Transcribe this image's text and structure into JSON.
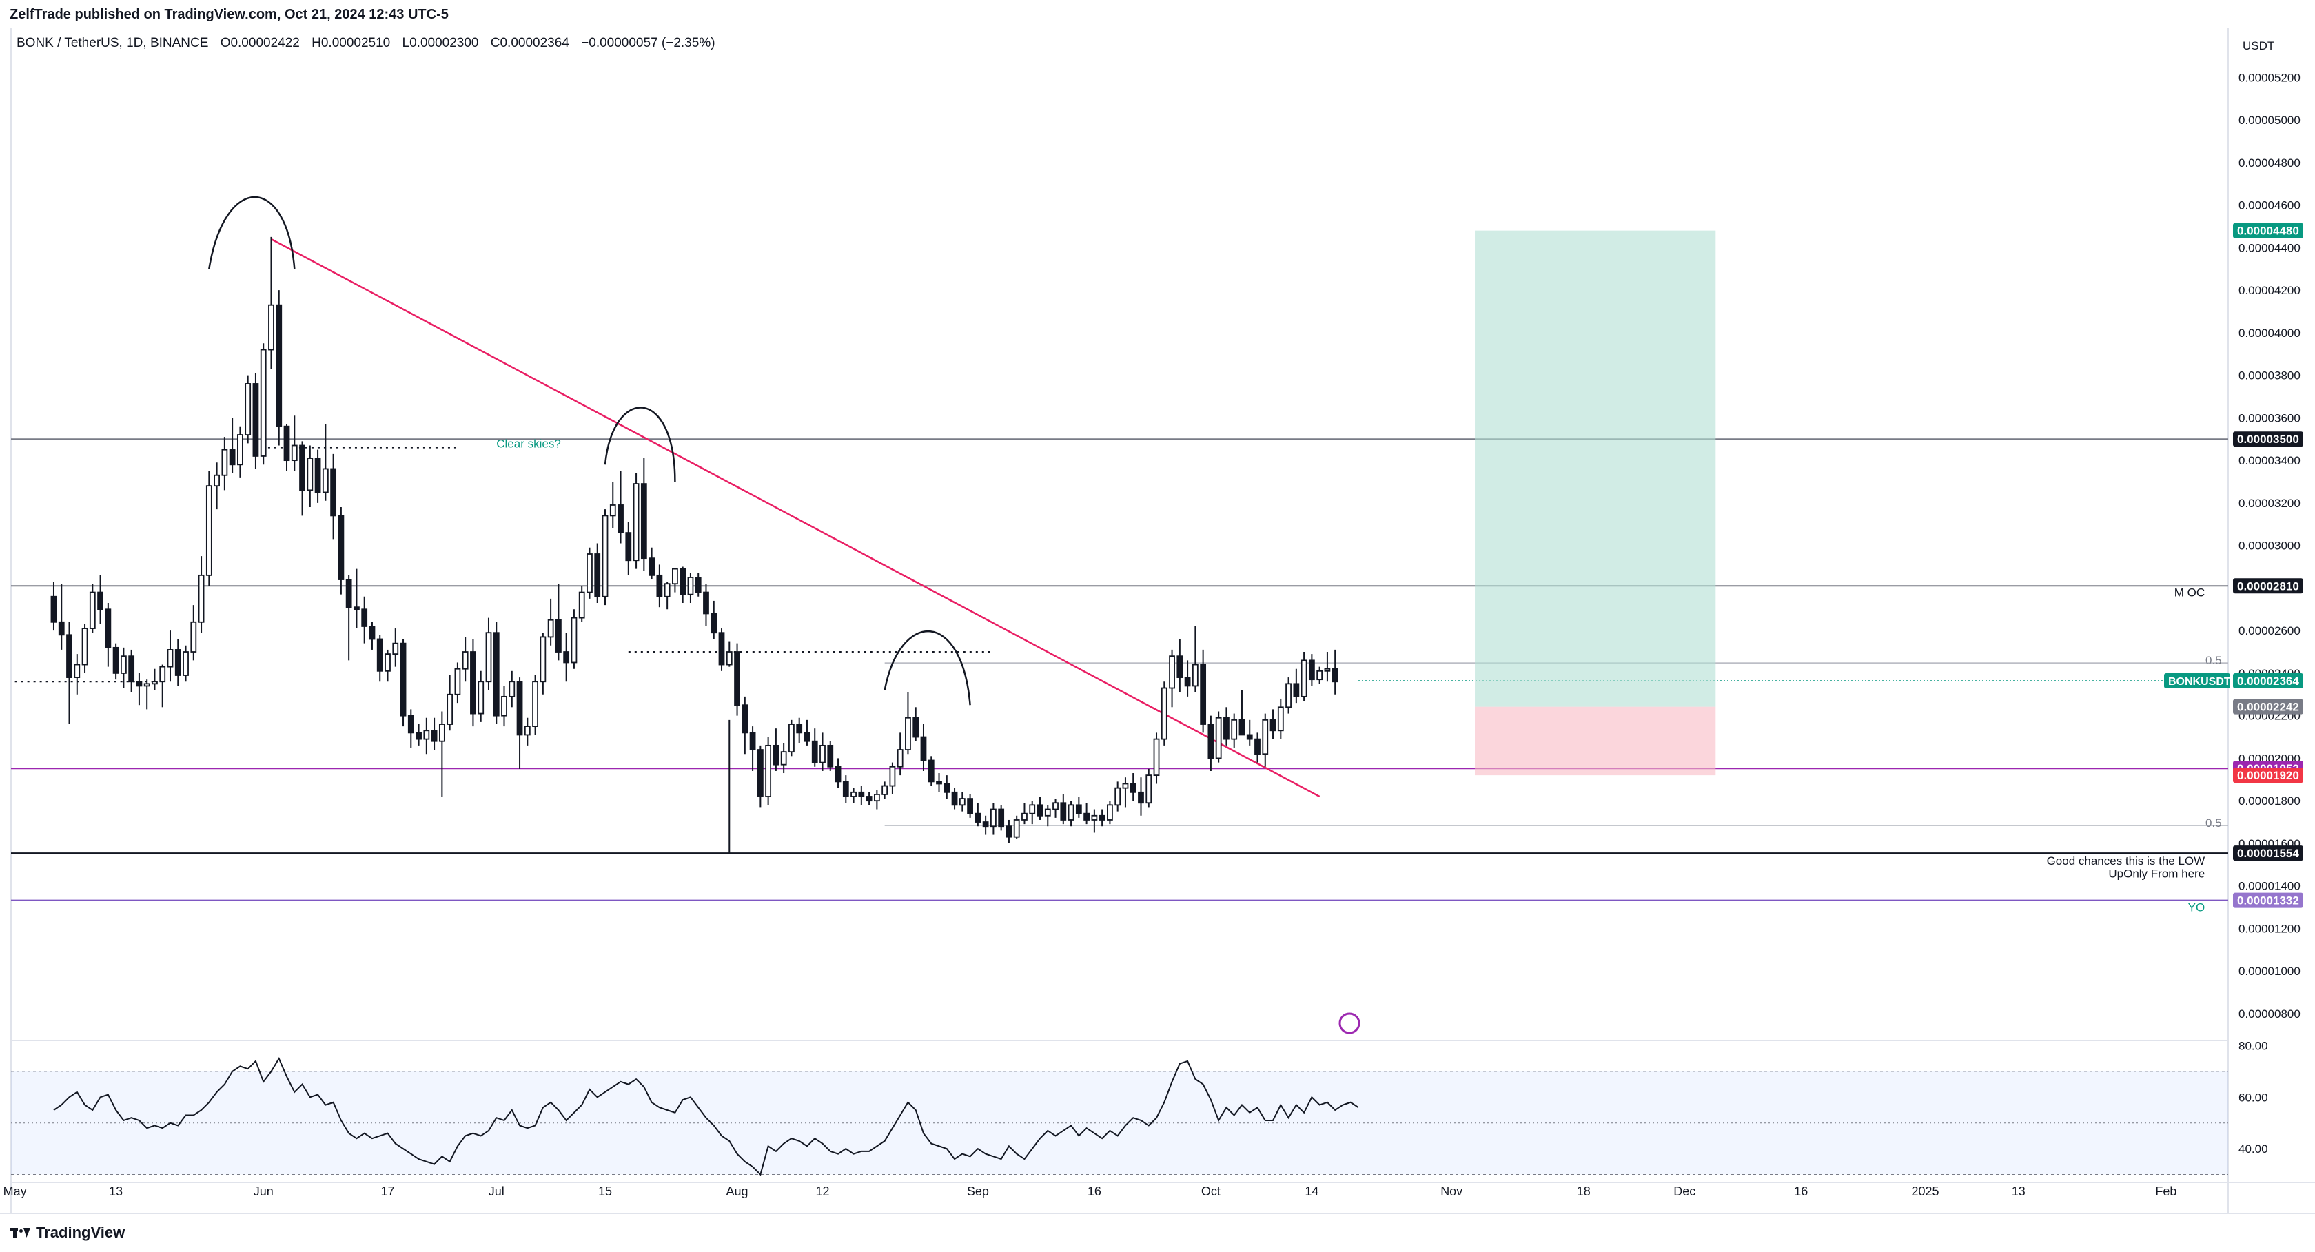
{
  "header": {
    "publisher": "ZelfTrade published on TradingView.com, Oct 21, 2024 12:43 UTC-5",
    "symbol": "BONK / TetherUS, 1D, BINANCE",
    "open": "O0.00002422",
    "high": "H0.00002510",
    "low": "L0.00002300",
    "close": "C0.00002364",
    "change": "−0.00000057 (−2.35%)"
  },
  "footer": {
    "brand": "TradingView"
  },
  "chart_data": {
    "type": "candlestick",
    "currency": "USDT",
    "y_axis_ticks": [
      "0.00000800",
      "0.00001000",
      "0.00001200",
      "0.00001400",
      "0.00001600",
      "0.00001800",
      "0.00002000",
      "0.00002200",
      "0.00002400",
      "0.00002600",
      "0.00002800",
      "0.00003000",
      "0.00003200",
      "0.00003400",
      "0.00003600",
      "0.00003800",
      "0.00004000",
      "0.00004200",
      "0.00004400",
      "0.00004600",
      "0.00004800",
      "0.00005000",
      "0.00005200"
    ],
    "y_axis_values": [
      8,
      10,
      12,
      14,
      16,
      18,
      20,
      22,
      24,
      26,
      28,
      30,
      32,
      34,
      36,
      38,
      40,
      42,
      44,
      46,
      48,
      50,
      52
    ],
    "ylim": [
      6.8,
      53.5
    ],
    "y_unit_note": "prices ×1e-6",
    "x_axis_labels": [
      {
        "label": "May",
        "t": -5
      },
      {
        "label": "13",
        "t": 8
      },
      {
        "label": "Jun",
        "t": 27
      },
      {
        "label": "17",
        "t": 43
      },
      {
        "label": "Jul",
        "t": 57
      },
      {
        "label": "15",
        "t": 71
      },
      {
        "label": "Aug",
        "t": 88
      },
      {
        "label": "12",
        "t": 99
      },
      {
        "label": "Sep",
        "t": 119
      },
      {
        "label": "16",
        "t": 134
      },
      {
        "label": "Oct",
        "t": 149
      },
      {
        "label": "14",
        "t": 162
      },
      {
        "label": "Nov",
        "t": 180
      },
      {
        "label": "18",
        "t": 197
      },
      {
        "label": "Dec",
        "t": 210
      },
      {
        "label": "16",
        "t": 225
      },
      {
        "label": "2025",
        "t": 241
      },
      {
        "label": "13",
        "t": 253
      },
      {
        "label": "Feb",
        "t": 272
      }
    ],
    "xlim": [
      -5.5,
      280
    ],
    "candles": [
      [
        27.6,
        28.3,
        26.0,
        26.4
      ],
      [
        26.4,
        28.2,
        25.1,
        25.8
      ],
      [
        25.8,
        26.4,
        21.6,
        23.8
      ],
      [
        23.8,
        24.9,
        23.0,
        24.4
      ],
      [
        24.4,
        26.3,
        24.0,
        26.1
      ],
      [
        26.1,
        28.2,
        25.9,
        27.8
      ],
      [
        27.8,
        28.6,
        26.3,
        27.0
      ],
      [
        27.0,
        27.3,
        24.3,
        25.2
      ],
      [
        25.2,
        25.4,
        23.7,
        24.0
      ],
      [
        24.0,
        25.2,
        23.3,
        24.8
      ],
      [
        24.8,
        25.1,
        23.1,
        23.6
      ],
      [
        23.6,
        24.0,
        22.5,
        23.4
      ],
      [
        23.4,
        23.7,
        22.3,
        23.5
      ],
      [
        23.5,
        24.2,
        23.2,
        23.6
      ],
      [
        23.6,
        24.4,
        22.4,
        24.3
      ],
      [
        24.3,
        26.0,
        23.6,
        25.1
      ],
      [
        25.1,
        25.6,
        23.4,
        23.9
      ],
      [
        23.9,
        25.3,
        23.6,
        25.0
      ],
      [
        25.0,
        27.2,
        24.6,
        26.4
      ],
      [
        26.4,
        29.5,
        25.9,
        28.6
      ],
      [
        28.6,
        33.5,
        28.1,
        32.8
      ],
      [
        32.8,
        33.9,
        31.7,
        33.3
      ],
      [
        33.3,
        35.1,
        32.6,
        34.5
      ],
      [
        34.5,
        36.0,
        33.4,
        33.8
      ],
      [
        33.8,
        35.6,
        33.2,
        35.2
      ],
      [
        35.2,
        38.0,
        34.8,
        37.6
      ],
      [
        37.6,
        38.1,
        33.6,
        34.2
      ],
      [
        34.2,
        39.5,
        33.8,
        39.2
      ],
      [
        39.2,
        44.5,
        38.3,
        41.3
      ],
      [
        41.3,
        42.0,
        34.7,
        35.6
      ],
      [
        35.6,
        35.7,
        33.5,
        34.0
      ],
      [
        34.0,
        36.1,
        33.5,
        34.7
      ],
      [
        34.7,
        34.9,
        31.4,
        32.6
      ],
      [
        32.6,
        34.7,
        31.8,
        34.1
      ],
      [
        34.1,
        34.5,
        32.0,
        32.5
      ],
      [
        32.5,
        35.7,
        32.1,
        33.6
      ],
      [
        33.6,
        34.3,
        30.3,
        31.4
      ],
      [
        31.4,
        31.8,
        27.7,
        28.4
      ],
      [
        28.4,
        28.6,
        24.6,
        27.1
      ],
      [
        27.1,
        28.9,
        26.1,
        27.0
      ],
      [
        27.0,
        27.6,
        25.4,
        26.2
      ],
      [
        26.2,
        26.4,
        25.1,
        25.6
      ],
      [
        25.6,
        25.8,
        23.6,
        24.1
      ],
      [
        24.1,
        25.1,
        23.6,
        24.9
      ],
      [
        24.9,
        26.1,
        24.3,
        25.4
      ],
      [
        25.4,
        25.6,
        21.5,
        22.0
      ],
      [
        22.0,
        22.3,
        20.5,
        21.2
      ],
      [
        21.2,
        21.6,
        20.6,
        20.9
      ],
      [
        20.9,
        21.9,
        20.2,
        21.3
      ],
      [
        21.3,
        21.9,
        20.4,
        20.8
      ],
      [
        20.8,
        22.2,
        18.2,
        21.6
      ],
      [
        21.6,
        23.9,
        21.3,
        23.0
      ],
      [
        23.0,
        24.5,
        22.6,
        24.2
      ],
      [
        24.2,
        25.7,
        23.6,
        25.0
      ],
      [
        25.0,
        25.6,
        21.5,
        22.1
      ],
      [
        22.1,
        24.1,
        21.7,
        23.6
      ],
      [
        23.6,
        26.6,
        23.2,
        25.9
      ],
      [
        25.9,
        26.4,
        21.6,
        22.0
      ],
      [
        22.0,
        23.4,
        21.5,
        22.9
      ],
      [
        22.9,
        24.1,
        22.4,
        23.6
      ],
      [
        23.6,
        23.8,
        19.5,
        21.1
      ],
      [
        21.1,
        21.9,
        20.6,
        21.5
      ],
      [
        21.5,
        23.9,
        21.1,
        23.6
      ],
      [
        23.6,
        25.9,
        23.0,
        25.7
      ],
      [
        25.7,
        27.5,
        25.3,
        26.5
      ],
      [
        26.5,
        28.2,
        24.6,
        25.0
      ],
      [
        25.0,
        25.9,
        23.6,
        24.5
      ],
      [
        24.5,
        27.0,
        24.2,
        26.6
      ],
      [
        26.6,
        28.1,
        26.4,
        27.8
      ],
      [
        27.8,
        29.9,
        27.5,
        29.6
      ],
      [
        29.6,
        30.1,
        27.3,
        27.6
      ],
      [
        27.6,
        31.7,
        27.2,
        31.4
      ],
      [
        31.4,
        33.0,
        30.8,
        31.9
      ],
      [
        31.9,
        33.5,
        30.1,
        30.6
      ],
      [
        30.6,
        31.1,
        28.6,
        29.3
      ],
      [
        29.3,
        33.4,
        28.9,
        32.9
      ],
      [
        32.9,
        34.1,
        28.8,
        29.4
      ],
      [
        29.4,
        29.9,
        28.4,
        28.6
      ],
      [
        28.6,
        29.1,
        27.1,
        27.6
      ],
      [
        27.6,
        28.3,
        27.0,
        28.2
      ],
      [
        28.2,
        28.9,
        27.8,
        28.9
      ],
      [
        28.9,
        29.0,
        27.3,
        27.7
      ],
      [
        27.7,
        28.7,
        27.3,
        28.5
      ],
      [
        28.5,
        28.7,
        27.6,
        27.8
      ],
      [
        27.8,
        28.2,
        26.2,
        26.8
      ],
      [
        26.8,
        27.4,
        25.6,
        25.9
      ],
      [
        25.9,
        26.1,
        24.1,
        24.4
      ],
      [
        24.4,
        25.5,
        24.3,
        25.0
      ],
      [
        25.0,
        25.4,
        22.0,
        22.5
      ],
      [
        22.5,
        22.9,
        20.2,
        21.2
      ],
      [
        21.2,
        21.5,
        19.4,
        20.4
      ],
      [
        20.4,
        20.6,
        17.7,
        18.2
      ],
      [
        18.2,
        21.0,
        17.8,
        20.6
      ],
      [
        20.6,
        21.4,
        19.4,
        19.7
      ],
      [
        19.7,
        20.7,
        19.3,
        20.3
      ],
      [
        20.3,
        21.8,
        20.1,
        21.6
      ],
      [
        21.6,
        21.9,
        20.7,
        21.2
      ],
      [
        21.2,
        21.8,
        20.6,
        20.8
      ],
      [
        20.8,
        21.4,
        19.6,
        19.8
      ],
      [
        19.8,
        21.2,
        19.4,
        20.6
      ],
      [
        20.6,
        20.8,
        19.4,
        19.6
      ],
      [
        19.6,
        20.0,
        18.6,
        18.9
      ],
      [
        18.9,
        19.2,
        17.9,
        18.2
      ],
      [
        18.2,
        18.6,
        17.9,
        18.4
      ],
      [
        18.4,
        18.7,
        17.8,
        18.2
      ],
      [
        18.2,
        18.4,
        17.8,
        18.0
      ],
      [
        18.0,
        18.5,
        17.6,
        18.3
      ],
      [
        18.3,
        18.9,
        18.1,
        18.7
      ],
      [
        18.7,
        19.8,
        18.3,
        19.6
      ],
      [
        19.6,
        21.2,
        19.2,
        20.4
      ],
      [
        20.4,
        23.1,
        20.2,
        21.9
      ],
      [
        21.9,
        22.4,
        20.8,
        21.0
      ],
      [
        21.0,
        21.6,
        19.4,
        19.9
      ],
      [
        19.9,
        20.1,
        18.7,
        18.9
      ],
      [
        18.9,
        19.3,
        18.4,
        18.8
      ],
      [
        18.8,
        19.2,
        18.1,
        18.4
      ],
      [
        18.4,
        18.6,
        17.6,
        17.8
      ],
      [
        17.8,
        18.4,
        17.5,
        18.1
      ],
      [
        18.1,
        18.3,
        17.2,
        17.4
      ],
      [
        17.4,
        17.9,
        16.8,
        17.0
      ],
      [
        17.0,
        17.3,
        16.4,
        16.8
      ],
      [
        16.8,
        17.9,
        16.4,
        17.6
      ],
      [
        17.6,
        17.8,
        16.6,
        16.8
      ],
      [
        16.8,
        17.1,
        16.0,
        16.3
      ],
      [
        16.3,
        17.3,
        16.2,
        17.1
      ],
      [
        17.1,
        17.9,
        16.9,
        17.4
      ],
      [
        17.4,
        18.0,
        16.9,
        17.8
      ],
      [
        17.8,
        18.2,
        17.1,
        17.3
      ],
      [
        17.3,
        17.8,
        16.8,
        17.6
      ],
      [
        17.6,
        18.1,
        17.2,
        17.9
      ],
      [
        17.9,
        18.3,
        16.9,
        17.1
      ],
      [
        17.1,
        18.0,
        16.8,
        17.8
      ],
      [
        17.8,
        18.2,
        17.2,
        17.4
      ],
      [
        17.4,
        17.9,
        16.9,
        17.1
      ],
      [
        17.1,
        17.6,
        16.5,
        17.3
      ],
      [
        17.3,
        17.6,
        16.8,
        17.1
      ],
      [
        17.1,
        18.0,
        16.9,
        17.8
      ],
      [
        17.8,
        18.9,
        17.5,
        18.6
      ],
      [
        18.6,
        19.1,
        17.7,
        18.8
      ],
      [
        18.8,
        19.3,
        18.0,
        18.4
      ],
      [
        18.4,
        19.1,
        17.3,
        17.9
      ],
      [
        17.9,
        19.5,
        17.7,
        19.2
      ],
      [
        19.2,
        21.2,
        18.8,
        20.9
      ],
      [
        20.9,
        23.6,
        20.6,
        23.3
      ],
      [
        23.3,
        25.1,
        22.4,
        24.8
      ],
      [
        24.8,
        25.6,
        23.1,
        23.8
      ],
      [
        23.8,
        24.6,
        22.9,
        23.4
      ],
      [
        23.4,
        26.2,
        23.1,
        24.4
      ],
      [
        24.4,
        25.1,
        21.2,
        21.6
      ],
      [
        21.6,
        22.0,
        19.4,
        20.0
      ],
      [
        20.0,
        22.2,
        19.8,
        21.9
      ],
      [
        21.9,
        22.4,
        20.6,
        20.9
      ],
      [
        20.9,
        22.1,
        20.5,
        21.8
      ],
      [
        21.8,
        23.2,
        21.3,
        21.1
      ],
      [
        21.1,
        21.8,
        20.6,
        20.9
      ],
      [
        20.9,
        21.2,
        19.8,
        20.2
      ],
      [
        20.2,
        22.1,
        19.6,
        21.8
      ],
      [
        21.8,
        22.3,
        20.9,
        21.3
      ],
      [
        21.3,
        22.8,
        20.9,
        22.4
      ],
      [
        22.4,
        23.8,
        22.1,
        23.5
      ],
      [
        23.5,
        24.2,
        22.6,
        22.9
      ],
      [
        22.9,
        25.0,
        22.7,
        24.6
      ],
      [
        24.6,
        24.9,
        23.4,
        23.7
      ],
      [
        23.7,
        24.3,
        23.5,
        24.1
      ],
      [
        24.1,
        25.0,
        23.6,
        24.2
      ],
      [
        24.2,
        25.1,
        23.0,
        23.6
      ]
    ],
    "lines": {
      "horizontal_levels": [
        {
          "price": "0.00003500",
          "value": 35.0,
          "color": "#787b86",
          "tag_bg": "#131722"
        },
        {
          "price": "0.00002810",
          "value": 28.1,
          "color": "#787b86",
          "tag_bg": "#131722"
        },
        {
          "price": "0.00001952",
          "value": 19.52,
          "color": "#9c27b0",
          "tag_bg": "#9c27b0"
        },
        {
          "price": "0.00001554",
          "value": 15.54,
          "color": "#131722",
          "tag_bg": "#131722"
        },
        {
          "price": "0.00001332",
          "value": 13.32,
          "color": "#7e57c2",
          "tag_bg": "#9575cd"
        }
      ],
      "fib_levels": [
        {
          "label": "0.5",
          "value": 24.48
        },
        {
          "label": "0.5",
          "value": 16.84
        }
      ],
      "trendline": {
        "t1": 28,
        "p1": 44.4,
        "t2": 163,
        "p2": 18.2,
        "color": "#e91e63"
      }
    },
    "position": {
      "t_start": 183,
      "t_end": 214,
      "target": {
        "price": "0.00004480",
        "value": 44.8,
        "color": "#089981"
      },
      "entry": {
        "price": "0.00002242",
        "value": 22.42,
        "color": "#787b86"
      },
      "stop": {
        "price": "0.00001920",
        "value": 19.2,
        "color": "#f23645"
      }
    },
    "last_price": {
      "symbol": "BONKUSDT",
      "price": "0.00002364",
      "value": 23.64,
      "color": "#089981"
    },
    "annotations": [
      {
        "text": "Clear skies?",
        "t": 57,
        "p": 34.6,
        "color": "#089981"
      },
      {
        "text": "M OC",
        "t": 277,
        "p": 27.6,
        "color": "#131722",
        "anchor": "end"
      },
      {
        "text": "Good chances this is the LOW",
        "t": 277,
        "p": 15.0,
        "color": "#131722",
        "anchor": "end"
      },
      {
        "text": "UpOnly From here",
        "t": 277,
        "p": 14.4,
        "color": "#131722",
        "anchor": "end"
      },
      {
        "text": "YO",
        "t": 277,
        "p": 12.8,
        "color": "#089981",
        "anchor": "end"
      }
    ],
    "rsi": {
      "ylim": [
        28,
        82
      ],
      "ticks": [
        {
          "label": "80.00",
          "value": 80
        },
        {
          "label": "60.00",
          "value": 60
        },
        {
          "label": "40.00",
          "value": 40
        }
      ],
      "band": [
        30,
        70
      ],
      "midline": 50,
      "values": [
        55,
        57,
        60,
        62,
        57,
        55,
        60,
        61,
        55,
        51,
        52,
        51,
        48,
        49,
        48,
        50,
        49,
        53,
        53,
        55,
        58,
        62,
        65,
        70,
        72,
        71,
        74,
        66,
        70,
        75,
        68,
        62,
        65,
        60,
        61,
        57,
        58,
        51,
        46,
        44,
        46,
        44,
        45,
        46,
        42,
        40,
        38,
        36,
        35,
        34,
        37,
        35,
        41,
        45,
        46,
        45,
        47,
        52,
        51,
        55,
        49,
        48,
        49,
        56,
        58,
        55,
        51,
        54,
        57,
        63,
        60,
        62,
        64,
        66,
        65,
        67,
        64,
        58,
        56,
        55,
        54,
        59,
        60,
        56,
        52,
        49,
        45,
        43,
        38,
        35,
        33,
        30,
        41,
        39,
        42,
        44,
        43,
        41,
        44,
        42,
        39,
        38,
        40,
        38,
        39,
        39,
        41,
        43,
        48,
        53,
        58,
        55,
        46,
        42,
        41,
        40,
        36,
        38,
        37,
        40,
        38,
        37,
        36,
        41,
        38,
        36,
        40,
        44,
        47,
        45,
        47,
        49,
        45,
        48,
        46,
        44,
        47,
        45,
        49,
        52,
        51,
        49,
        52,
        58,
        66,
        73,
        74,
        67,
        65,
        59,
        51,
        56,
        53,
        57,
        54,
        56,
        51,
        51,
        57,
        52,
        57,
        54,
        60,
        57,
        58,
        55,
        57,
        58,
        56
      ]
    }
  }
}
